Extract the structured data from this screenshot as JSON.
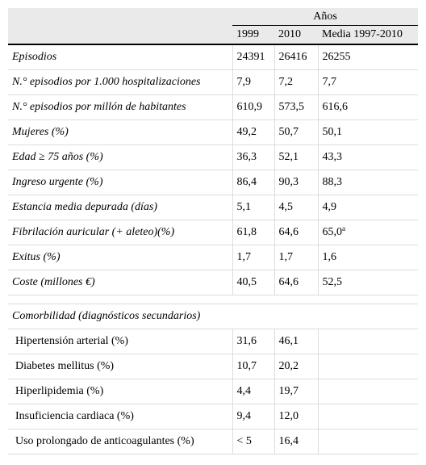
{
  "header": {
    "group_label": "Años",
    "columns": [
      "1999",
      "2010",
      "Media 1997-2010"
    ]
  },
  "rows": [
    {
      "label": "Episodios",
      "v1999": "24391",
      "v2010": "26416",
      "vmedia": "26255"
    },
    {
      "label": "N.° episodios por 1.000 hospitalizaciones",
      "v1999": "7,9",
      "v2010": "7,2",
      "vmedia": "7,7"
    },
    {
      "label": "N.° episodios por millón de habitantes",
      "v1999": "610,9",
      "v2010": "573,5",
      "vmedia": "616,6"
    },
    {
      "label": "Mujeres (%)",
      "v1999": "49,2",
      "v2010": "50,7",
      "vmedia": "50,1"
    },
    {
      "label": "Edad ≥ 75 años (%)",
      "v1999": "36,3",
      "v2010": "52,1",
      "vmedia": "43,3"
    },
    {
      "label": "Ingreso urgente (%)",
      "v1999": "86,4",
      "v2010": "90,3",
      "vmedia": "88,3"
    },
    {
      "label": "Estancia media depurada (días)",
      "v1999": "5,1",
      "v2010": "4,5",
      "vmedia": "4,9"
    },
    {
      "label": "Fibrilación auricular (+ aleteo)(%)",
      "v1999": "61,8",
      "v2010": "64,6",
      "vmedia": "65,0",
      "vmedia_sup": "a"
    },
    {
      "label": "Exitus (%)",
      "v1999": "1,7",
      "v2010": "1,7",
      "vmedia": "1,6"
    },
    {
      "label": "Coste (millones €)",
      "v1999": "40,5",
      "v2010": "64,6",
      "vmedia": "52,5"
    }
  ],
  "comorbidity": {
    "title": "Comorbilidad (diagnósticos secundarios)",
    "rows": [
      {
        "label": "Hipertensión arterial (%)",
        "v1999": "31,6",
        "v2010": "46,1"
      },
      {
        "label": "Diabetes mellitus (%)",
        "v1999": "10,7",
        "v2010": "20,2"
      },
      {
        "label": "Hiperlipidemia (%)",
        "v1999": "4,4",
        "v2010": "19,7"
      },
      {
        "label": "Insuficiencia cardiaca (%)",
        "v1999": "9,4",
        "v2010": "12,0"
      },
      {
        "label": "Uso prolongado de anticoagulantes (%)",
        "v1999": "< 5",
        "v2010": "16,4"
      }
    ]
  }
}
